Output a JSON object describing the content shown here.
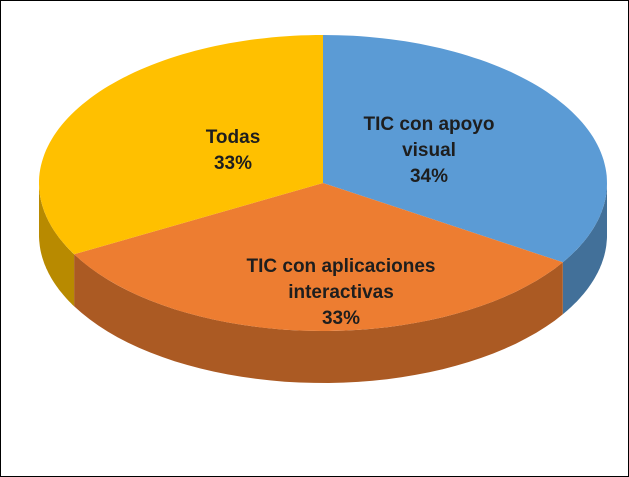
{
  "chart_data": {
    "type": "pie",
    "categories": [
      "TIC con apoyo visual",
      "TIC con aplicaciones interactivas",
      "Todas"
    ],
    "values": [
      34,
      33,
      33
    ],
    "value_labels": [
      "34%",
      "33%",
      "33%"
    ],
    "colors": [
      "#5b9bd5",
      "#ed7d31",
      "#ffc000"
    ]
  }
}
